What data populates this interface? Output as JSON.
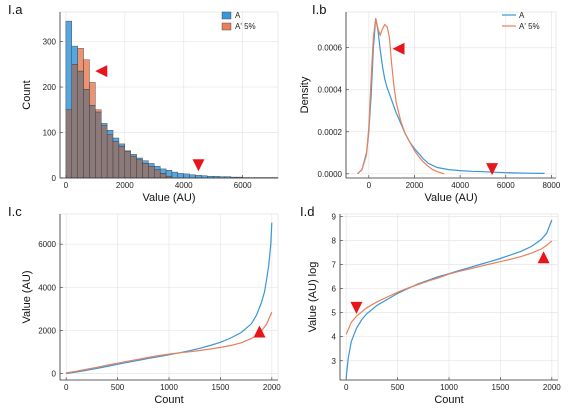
{
  "colors": {
    "A": "#3b96d8",
    "A5": "#e8805b",
    "overlap": "#8c7a7a",
    "marker": "#e8161b",
    "grid": "#e6e6e6",
    "axis": "#333333"
  },
  "chart_data": [
    {
      "panel": "I.a",
      "type": "bar",
      "xlabel": "Value (AU)",
      "ylabel": "Count",
      "xlim": [
        -200,
        7200
      ],
      "ylim": [
        0,
        365
      ],
      "xticks": [
        "0",
        "2000",
        "4000",
        "6000"
      ],
      "xtick_values": [
        0,
        2000,
        4000,
        6000
      ],
      "yticks": [
        "0",
        "100",
        "200",
        "300"
      ],
      "ytick_values": [
        0,
        100,
        200,
        300
      ],
      "bin_width": 200,
      "legend": [
        "A",
        "A' 5%"
      ],
      "series": [
        {
          "name": "A",
          "bin_starts": [
            0,
            200,
            400,
            600,
            800,
            1000,
            1200,
            1400,
            1600,
            1800,
            2000,
            2200,
            2400,
            2600,
            2800,
            3000,
            3200,
            3400,
            3600,
            3800,
            4000,
            4200,
            4400,
            4600,
            4800,
            5000,
            5200,
            5400,
            5600,
            5800,
            6000,
            6200,
            6400,
            6600,
            6800,
            7000
          ],
          "values": [
            345,
            290,
            235,
            195,
            160,
            145,
            120,
            105,
            88,
            75,
            60,
            52,
            44,
            38,
            32,
            26,
            20,
            17,
            13,
            10,
            9,
            7,
            6,
            5,
            4,
            4,
            3,
            3,
            2,
            2,
            1,
            1,
            1,
            1,
            1,
            1
          ]
        },
        {
          "name": "A' 5%",
          "bin_starts": [
            0,
            200,
            400,
            600,
            800,
            1000,
            1200,
            1400,
            1600,
            1800,
            2000,
            2200,
            2400,
            2600,
            2800,
            3000,
            3200,
            3400
          ],
          "values": [
            150,
            250,
            285,
            260,
            210,
            150,
            115,
            95,
            80,
            70,
            58,
            48,
            40,
            32,
            26,
            18,
            10,
            4
          ]
        }
      ],
      "markers": [
        {
          "shape": "triangle-left",
          "x": 1200,
          "y": 235
        },
        {
          "shape": "triangle-down",
          "x": 4500,
          "y": 28
        }
      ]
    },
    {
      "panel": "I.b",
      "type": "line",
      "xlabel": "Value (AU)",
      "ylabel": "Density",
      "xlim": [
        -1000,
        8200
      ],
      "ylim": [
        -2e-05,
        0.00077
      ],
      "xticks": [
        "0",
        "2000",
        "4000",
        "6000",
        "8000"
      ],
      "xtick_values": [
        0,
        2000,
        4000,
        6000,
        8000
      ],
      "yticks": [
        "0.0000",
        "0.0002",
        "0.0004",
        "0.0006"
      ],
      "ytick_values": [
        0,
        0.0002,
        0.0004,
        0.0006
      ],
      "legend": [
        "A",
        "A' 5%"
      ],
      "series": [
        {
          "name": "A",
          "x": [
            -500,
            -300,
            -100,
            0,
            100,
            200,
            300,
            400,
            500,
            600,
            700,
            800,
            1000,
            1200,
            1400,
            1600,
            1800,
            2000,
            2200,
            2400,
            2600,
            2800,
            3000,
            3500,
            4000,
            4500,
            5000,
            6000,
            7000,
            7700
          ],
          "y": [
            0,
            2e-05,
            0.0001,
            0.0002,
            0.00037,
            0.0006,
            0.00074,
            0.00068,
            0.00059,
            0.00051,
            0.00045,
            0.00041,
            0.00035,
            0.00029,
            0.00024,
            0.00019,
            0.00015,
            0.00012,
            9.5e-05,
            7e-05,
            5e-05,
            4e-05,
            3e-05,
            2e-05,
            1.5e-05,
            1.2e-05,
            1e-05,
            5e-06,
            3e-06,
            2e-06
          ]
        },
        {
          "name": "A' 5%",
          "x": [
            -500,
            -300,
            -100,
            0,
            100,
            200,
            300,
            400,
            500,
            600,
            700,
            800,
            900,
            1000,
            1100,
            1200,
            1400,
            1600,
            1800,
            2000,
            2200,
            2400,
            2600,
            2800,
            3000,
            3300
          ],
          "y": [
            0,
            2e-05,
            9e-05,
            0.00022,
            0.00045,
            0.00065,
            0.00074,
            0.00069,
            0.00066,
            0.00069,
            0.00071,
            0.0007,
            0.00065,
            0.00052,
            0.00042,
            0.00034,
            0.00025,
            0.00019,
            0.00015,
            0.00011,
            8e-05,
            5.5e-05,
            3.5e-05,
            2e-05,
            1e-05,
            0
          ]
        }
      ],
      "markers": [
        {
          "shape": "triangle-left",
          "x": 1300,
          "y": 0.000595
        },
        {
          "shape": "triangle-down",
          "x": 5400,
          "y": 2.2e-05
        }
      ]
    },
    {
      "panel": "I.c",
      "type": "line",
      "xlabel": "Count",
      "ylabel": "Value (AU)",
      "xlim": [
        -60,
        2060
      ],
      "ylim": [
        -300,
        7400
      ],
      "xticks": [
        "0",
        "500",
        "1000",
        "1500",
        "2000"
      ],
      "xtick_values": [
        0,
        500,
        1000,
        1500,
        2000
      ],
      "yticks": [
        "0",
        "2000",
        "4000",
        "6000"
      ],
      "ytick_values": [
        0,
        2000,
        4000,
        6000
      ],
      "series": [
        {
          "name": "A",
          "x": [
            0,
            100,
            200,
            300,
            400,
            500,
            600,
            700,
            800,
            900,
            1000,
            1100,
            1200,
            1300,
            1400,
            1500,
            1600,
            1700,
            1800,
            1850,
            1900,
            1930,
            1950,
            1970,
            1990,
            2000
          ],
          "y": [
            0,
            70,
            150,
            240,
            330,
            430,
            520,
            610,
            700,
            780,
            870,
            960,
            1060,
            1170,
            1300,
            1450,
            1650,
            1900,
            2300,
            2700,
            3300,
            3800,
            4400,
            5000,
            6000,
            7000
          ]
        },
        {
          "name": "A' 5%",
          "x": [
            0,
            100,
            200,
            300,
            400,
            500,
            600,
            700,
            800,
            900,
            1000,
            1100,
            1200,
            1300,
            1400,
            1500,
            1600,
            1700,
            1800,
            1850,
            1900,
            1950,
            2000
          ],
          "y": [
            30,
            110,
            200,
            290,
            390,
            480,
            570,
            660,
            750,
            830,
            900,
            960,
            1010,
            1070,
            1140,
            1210,
            1300,
            1420,
            1620,
            1760,
            1980,
            2300,
            2850
          ]
        }
      ],
      "markers": [
        {
          "shape": "triangle-up",
          "x": 1880,
          "y": 1950
        }
      ]
    },
    {
      "panel": "I.d",
      "type": "line",
      "xlabel": "Count",
      "ylabel": "Value (AU) log",
      "xlim": [
        -60,
        2060
      ],
      "ylim": [
        2.2,
        9.1
      ],
      "xticks": [
        "0",
        "500",
        "1000",
        "1500",
        "2000"
      ],
      "xtick_values": [
        0,
        500,
        1000,
        1500,
        2000
      ],
      "yticks": [
        "3",
        "4",
        "5",
        "6",
        "7",
        "8",
        "9"
      ],
      "ytick_values": [
        3,
        4,
        5,
        6,
        7,
        8,
        9
      ],
      "series": [
        {
          "name": "A",
          "x": [
            0,
            20,
            50,
            100,
            150,
            200,
            300,
            400,
            500,
            600,
            700,
            800,
            900,
            1000,
            1100,
            1200,
            1300,
            1400,
            1500,
            1600,
            1700,
            1800,
            1900,
            1950,
            2000
          ],
          "y": [
            2.3,
            3.1,
            3.8,
            4.35,
            4.7,
            4.95,
            5.3,
            5.55,
            5.8,
            6.0,
            6.2,
            6.35,
            6.5,
            6.62,
            6.75,
            6.87,
            7.0,
            7.12,
            7.25,
            7.4,
            7.55,
            7.75,
            8.05,
            8.3,
            8.85
          ]
        },
        {
          "name": "A' 5%",
          "x": [
            0,
            50,
            100,
            200,
            300,
            400,
            500,
            600,
            700,
            800,
            900,
            1000,
            1100,
            1200,
            1300,
            1400,
            1500,
            1600,
            1700,
            1800,
            1900,
            1950,
            2000
          ],
          "y": [
            4.1,
            4.6,
            4.85,
            5.2,
            5.45,
            5.65,
            5.85,
            6.02,
            6.17,
            6.32,
            6.45,
            6.6,
            6.72,
            6.82,
            6.92,
            7.02,
            7.12,
            7.22,
            7.33,
            7.47,
            7.65,
            7.8,
            7.98
          ]
        }
      ],
      "markers": [
        {
          "shape": "triangle-down",
          "x": 100,
          "y": 5.2
        },
        {
          "shape": "triangle-up",
          "x": 1920,
          "y": 7.3
        }
      ]
    }
  ]
}
